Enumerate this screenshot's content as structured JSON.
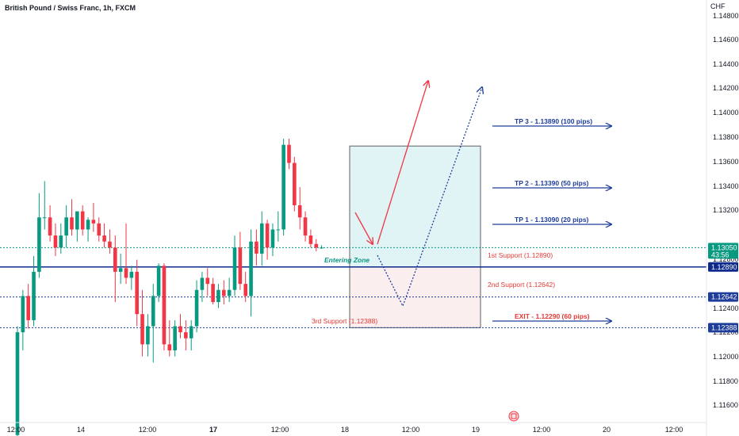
{
  "header": {
    "title": "British Pound / Swiss Franc, 1h, FXCM",
    "currency": "CHF"
  },
  "chart_data": {
    "type": "candlestick",
    "symbol": "GBPCHF",
    "timeframe": "1h",
    "ylim": [
      1.11517,
      1.14973
    ],
    "y_ticks": [
      "1.14800",
      "1.14600",
      "1.14400",
      "1.14200",
      "1.14000",
      "1.13800",
      "1.13600",
      "1.13400",
      "1.13200",
      "1.12800",
      "1.12400",
      "1.12200",
      "1.12000",
      "1.11800",
      "1.11600"
    ],
    "x_ticks": [
      "12:00",
      "14",
      "12:00",
      "17",
      "12:00",
      "18",
      "12:00",
      "19",
      "12:00",
      "20",
      "12:00"
    ],
    "last_price": {
      "value": "1.13050",
      "countdown": "43:56",
      "color": "#089981"
    },
    "level_badges": [
      {
        "value": "1.12890",
        "color": "#0d2a8c"
      },
      {
        "value": "1.12642",
        "color": "#1e3d9a"
      },
      {
        "value": "1.12388",
        "color": "#1e3d9a"
      }
    ],
    "candles": [
      {
        "o": 1.115,
        "h": 1.124,
        "l": 1.1145,
        "c": 1.1235
      },
      {
        "o": 1.1235,
        "h": 1.127,
        "l": 1.122,
        "c": 1.1265
      },
      {
        "o": 1.1265,
        "h": 1.1275,
        "l": 1.1238,
        "c": 1.1245
      },
      {
        "o": 1.1245,
        "h": 1.1298,
        "l": 1.124,
        "c": 1.1285
      },
      {
        "o": 1.1285,
        "h": 1.135,
        "l": 1.128,
        "c": 1.133
      },
      {
        "o": 1.133,
        "h": 1.136,
        "l": 1.132,
        "c": 1.133
      },
      {
        "o": 1.133,
        "h": 1.134,
        "l": 1.131,
        "c": 1.1315
      },
      {
        "o": 1.1315,
        "h": 1.1325,
        "l": 1.1298,
        "c": 1.1305
      },
      {
        "o": 1.1305,
        "h": 1.1325,
        "l": 1.13,
        "c": 1.1315
      },
      {
        "o": 1.1315,
        "h": 1.134,
        "l": 1.1305,
        "c": 1.133
      },
      {
        "o": 1.133,
        "h": 1.1345,
        "l": 1.1315,
        "c": 1.132
      },
      {
        "o": 1.132,
        "h": 1.1335,
        "l": 1.131,
        "c": 1.1335
      },
      {
        "o": 1.1335,
        "h": 1.134,
        "l": 1.1315,
        "c": 1.132
      },
      {
        "o": 1.132,
        "h": 1.133,
        "l": 1.131,
        "c": 1.1328
      },
      {
        "o": 1.1328,
        "h": 1.1342,
        "l": 1.1318,
        "c": 1.1325
      },
      {
        "o": 1.1325,
        "h": 1.133,
        "l": 1.131,
        "c": 1.1315
      },
      {
        "o": 1.1315,
        "h": 1.1325,
        "l": 1.1305,
        "c": 1.131
      },
      {
        "o": 1.131,
        "h": 1.132,
        "l": 1.13,
        "c": 1.1305
      },
      {
        "o": 1.1305,
        "h": 1.1315,
        "l": 1.126,
        "c": 1.1285
      },
      {
        "o": 1.1285,
        "h": 1.13,
        "l": 1.1275,
        "c": 1.1288
      },
      {
        "o": 1.1288,
        "h": 1.1325,
        "l": 1.1275,
        "c": 1.128
      },
      {
        "o": 1.128,
        "h": 1.129,
        "l": 1.127,
        "c": 1.1285
      },
      {
        "o": 1.1285,
        "h": 1.1295,
        "l": 1.124,
        "c": 1.125
      },
      {
        "o": 1.125,
        "h": 1.127,
        "l": 1.1215,
        "c": 1.1225
      },
      {
        "o": 1.1225,
        "h": 1.125,
        "l": 1.1215,
        "c": 1.124
      },
      {
        "o": 1.124,
        "h": 1.1275,
        "l": 1.121,
        "c": 1.1265
      },
      {
        "o": 1.1265,
        "h": 1.1292,
        "l": 1.126,
        "c": 1.129
      },
      {
        "o": 1.129,
        "h": 1.1292,
        "l": 1.122,
        "c": 1.1225
      },
      {
        "o": 1.1225,
        "h": 1.1245,
        "l": 1.1215,
        "c": 1.122
      },
      {
        "o": 1.122,
        "h": 1.1245,
        "l": 1.1215,
        "c": 1.124
      },
      {
        "o": 1.124,
        "h": 1.125,
        "l": 1.123,
        "c": 1.1235
      },
      {
        "o": 1.1235,
        "h": 1.1245,
        "l": 1.122,
        "c": 1.123
      },
      {
        "o": 1.123,
        "h": 1.1245,
        "l": 1.122,
        "c": 1.124
      },
      {
        "o": 1.124,
        "h": 1.1278,
        "l": 1.1235,
        "c": 1.127
      },
      {
        "o": 1.127,
        "h": 1.1285,
        "l": 1.126,
        "c": 1.128
      },
      {
        "o": 1.128,
        "h": 1.1288,
        "l": 1.1265,
        "c": 1.1275
      },
      {
        "o": 1.1275,
        "h": 1.128,
        "l": 1.1258,
        "c": 1.126
      },
      {
        "o": 1.126,
        "h": 1.1275,
        "l": 1.1255,
        "c": 1.127
      },
      {
        "o": 1.127,
        "h": 1.1278,
        "l": 1.1258,
        "c": 1.1265
      },
      {
        "o": 1.1265,
        "h": 1.128,
        "l": 1.126,
        "c": 1.127
      },
      {
        "o": 1.127,
        "h": 1.1315,
        "l": 1.1265,
        "c": 1.1305
      },
      {
        "o": 1.1305,
        "h": 1.1318,
        "l": 1.127,
        "c": 1.1275
      },
      {
        "o": 1.1275,
        "h": 1.1285,
        "l": 1.126,
        "c": 1.1265
      },
      {
        "o": 1.1265,
        "h": 1.132,
        "l": 1.1248,
        "c": 1.131
      },
      {
        "o": 1.131,
        "h": 1.132,
        "l": 1.129,
        "c": 1.13
      },
      {
        "o": 1.13,
        "h": 1.1335,
        "l": 1.129,
        "c": 1.1325
      },
      {
        "o": 1.1325,
        "h": 1.1328,
        "l": 1.1295,
        "c": 1.1305
      },
      {
        "o": 1.1305,
        "h": 1.1325,
        "l": 1.1298,
        "c": 1.132
      },
      {
        "o": 1.132,
        "h": 1.1335,
        "l": 1.131,
        "c": 1.132
      },
      {
        "o": 1.132,
        "h": 1.1395,
        "l": 1.1315,
        "c": 1.139
      },
      {
        "o": 1.139,
        "h": 1.1395,
        "l": 1.137,
        "c": 1.1375
      },
      {
        "o": 1.1375,
        "h": 1.138,
        "l": 1.1335,
        "c": 1.134
      },
      {
        "o": 1.134,
        "h": 1.1355,
        "l": 1.132,
        "c": 1.133
      },
      {
        "o": 1.133,
        "h": 1.1335,
        "l": 1.131,
        "c": 1.1315
      },
      {
        "o": 1.1315,
        "h": 1.132,
        "l": 1.1305,
        "c": 1.1308
      },
      {
        "o": 1.1308,
        "h": 1.1312,
        "l": 1.1302,
        "c": 1.1305
      },
      {
        "o": 1.1305,
        "h": 1.1307,
        "l": 1.1304,
        "c": 1.1305
      }
    ],
    "horizontal_levels": [
      {
        "price": 1.1289,
        "style": "solid",
        "color": "#0d2a8c"
      },
      {
        "price": 1.12642,
        "style": "dotted",
        "color": "#1e3d9a"
      },
      {
        "price": 1.12388,
        "style": "dotted",
        "color": "#1e3d9a"
      },
      {
        "price": 1.1305,
        "style": "dotted",
        "color": "#089981"
      }
    ],
    "position_tool": {
      "entry": 1.1289,
      "target": 1.1389,
      "stop": 1.12388,
      "profit_fill": "#e0f3f5",
      "loss_fill": "#fbeeee"
    },
    "annotations": {
      "entering_zone": {
        "text": "Entering Zone",
        "color": "#089981"
      },
      "supports": [
        {
          "text": "1st Support (1.12890)",
          "color": "#e53935"
        },
        {
          "text": "2nd Support (1.12642)",
          "color": "#e53935"
        },
        {
          "text": "3rd Support (1.12388)",
          "color": "#e53935"
        }
      ],
      "targets": [
        {
          "text": "TP 3 - 1.13890 (100 pips)",
          "price": 1.1389,
          "color": "#1e3d9a"
        },
        {
          "text": "TP 2 - 1.13390 (50 pips)",
          "price": 1.1339,
          "color": "#1e3d9a"
        },
        {
          "text": "TP 1 - 1.13090 (20 pips)",
          "price": 1.1309,
          "color": "#1e3d9a"
        },
        {
          "text": "EXIT - 1.12290 (60 pips)",
          "price": 1.1229,
          "color": "#e53935"
        }
      ]
    },
    "colors": {
      "up": "#089981",
      "down": "#f23645"
    }
  }
}
